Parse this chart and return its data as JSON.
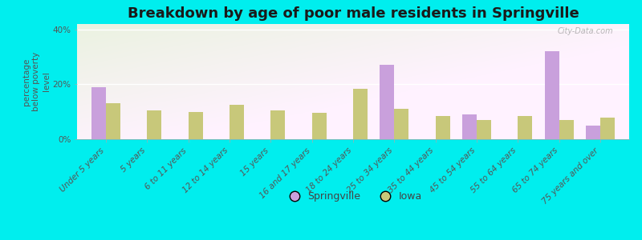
{
  "title": "Breakdown by age of poor male residents in Springville",
  "categories": [
    "Under 5 years",
    "5 years",
    "6 to 11 years",
    "12 to 14 years",
    "15 years",
    "16 and 17 years",
    "18 to 24 years",
    "25 to 34 years",
    "35 to 44 years",
    "45 to 54 years",
    "55 to 64 years",
    "65 to 74 years",
    "75 years and over"
  ],
  "springville": [
    19.0,
    0,
    0,
    0,
    0,
    0,
    0,
    27.0,
    0,
    9.0,
    0,
    32.0,
    5.0
  ],
  "iowa": [
    13.0,
    10.5,
    10.0,
    12.5,
    10.5,
    9.5,
    18.5,
    11.0,
    8.5,
    7.0,
    8.5,
    7.0,
    8.0
  ],
  "springville_color": "#c9a0dc",
  "iowa_color": "#c8c87a",
  "background_color": "#00eeee",
  "ylabel": "percentage\nbelow poverty\nlevel",
  "ylim": [
    0,
    42
  ],
  "yticks": [
    0,
    20,
    40
  ],
  "ytick_labels": [
    "0%",
    "20%",
    "40%"
  ],
  "title_fontsize": 13,
  "tick_label_fontsize": 7.5,
  "axis_label_fontsize": 7.5,
  "watermark": "City-Data.com",
  "bar_width": 0.35,
  "legend_labels": [
    "Springville",
    "Iowa"
  ]
}
